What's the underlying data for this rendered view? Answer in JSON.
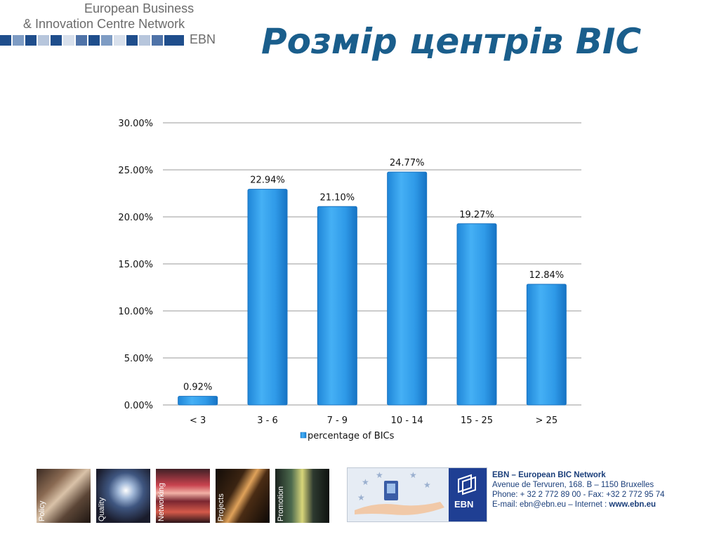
{
  "header": {
    "logo_line1": "European Business",
    "logo_line2": "& Innovation Centre Network",
    "logo_ebn": "EBN",
    "title": "Розмір центрів BIC"
  },
  "colors": {
    "bar": "#2f9ae8",
    "bar_edge": "#1a73c0",
    "title": "#1a5e8c",
    "grid": "#9a9a9a"
  },
  "chart_data": {
    "type": "bar",
    "categories": [
      "< 3",
      "3 - 6",
      "7 - 9",
      "10 - 14",
      "15 - 25",
      "> 25"
    ],
    "series": [
      {
        "name": "percentage of BICs",
        "values": [
          0.92,
          22.94,
          21.1,
          24.77,
          19.27,
          12.84
        ]
      }
    ],
    "data_labels": [
      "0.92%",
      "22.94%",
      "21.10%",
      "24.77%",
      "19.27%",
      "12.84%"
    ],
    "y_ticks": [
      "0.00%",
      "5.00%",
      "10.00%",
      "15.00%",
      "20.00%",
      "25.00%",
      "30.00%"
    ],
    "ylim": [
      0,
      30
    ],
    "grid": true,
    "legend_position": "bottom"
  },
  "footer": {
    "thumbs": [
      "Policy",
      "Quality",
      "Networking",
      "Projects",
      "Promotion"
    ],
    "ebn_logo": "EBN",
    "contact_title": "EBN – European BIC Network",
    "contact_address": "Avenue de Tervuren, 168.  B – 1150 Bruxelles",
    "contact_phone": "Phone: + 32 2 772 89 00 - Fax: +32 2 772 95 74",
    "contact_email": "E-mail: ebn@ebn.eu – Internet : ",
    "contact_web": "www.ebn.eu"
  }
}
